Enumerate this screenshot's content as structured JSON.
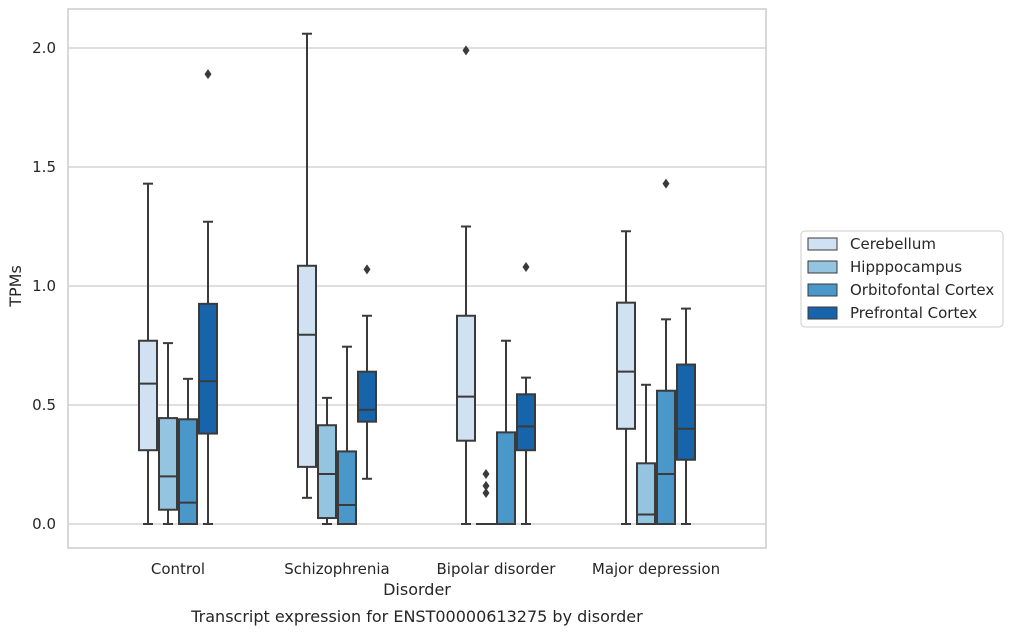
{
  "chart_data": {
    "type": "box",
    "xlabel": "Disorder",
    "ylabel": "TPMs",
    "caption": "Transcript expression for ENST00000613275 by disorder",
    "ylim": [
      -0.1,
      2.17
    ],
    "yticks": [
      0.0,
      0.5,
      1.0,
      1.5,
      2.0
    ],
    "ytick_labels": [
      "0.0",
      "0.5",
      "1.0",
      "1.5",
      "2.0"
    ],
    "grid": "horizontal",
    "legend_position": "right",
    "categories": [
      "Control",
      "Schizophrenia",
      "Bipolar disorder",
      "Major depression"
    ],
    "series": [
      {
        "name": "Cerebellum",
        "color": "#d0e1f2",
        "boxes": [
          {
            "min": 0.0,
            "q1": 0.31,
            "median": 0.59,
            "q3": 0.77,
            "max": 1.43,
            "outliers": []
          },
          {
            "min": 0.11,
            "q1": 0.24,
            "median": 0.795,
            "q3": 1.085,
            "max": 2.06,
            "outliers": []
          },
          {
            "min": 0.0,
            "q1": 0.35,
            "median": 0.535,
            "q3": 0.875,
            "max": 1.25,
            "outliers": [
              1.99
            ]
          },
          {
            "min": 0.0,
            "q1": 0.4,
            "median": 0.64,
            "q3": 0.93,
            "max": 1.23,
            "outliers": []
          }
        ]
      },
      {
        "name": "Hipppocampus",
        "color": "#94c4df",
        "boxes": [
          {
            "min": 0.0,
            "q1": 0.06,
            "median": 0.2,
            "q3": 0.445,
            "max": 0.76,
            "outliers": []
          },
          {
            "min": 0.0,
            "q1": 0.025,
            "median": 0.21,
            "q3": 0.415,
            "max": 0.53,
            "outliers": []
          },
          {
            "min": 0.0,
            "q1": 0.0,
            "median": 0.0,
            "q3": 0.0,
            "max": 0.0,
            "outliers": [
              0.13,
              0.16,
              0.21
            ]
          },
          {
            "min": 0.0,
            "q1": 0.0,
            "median": 0.04,
            "q3": 0.255,
            "max": 0.585,
            "outliers": []
          }
        ]
      },
      {
        "name": "Orbitofontal Cortex",
        "color": "#4a98c9",
        "boxes": [
          {
            "min": 0.0,
            "q1": 0.0,
            "median": 0.09,
            "q3": 0.44,
            "max": 0.61,
            "outliers": []
          },
          {
            "min": 0.0,
            "q1": 0.0,
            "median": 0.08,
            "q3": 0.305,
            "max": 0.745,
            "outliers": []
          },
          {
            "min": 0.0,
            "q1": 0.0,
            "median": 0.0,
            "q3": 0.385,
            "max": 0.77,
            "outliers": []
          },
          {
            "min": 0.0,
            "q1": 0.0,
            "median": 0.21,
            "q3": 0.56,
            "max": 0.86,
            "outliers": [
              1.43
            ]
          }
        ]
      },
      {
        "name": "Prefrontal Cortex",
        "color": "#1764ab",
        "boxes": [
          {
            "min": 0.0,
            "q1": 0.38,
            "median": 0.6,
            "q3": 0.925,
            "max": 1.27,
            "outliers": [
              1.89
            ]
          },
          {
            "min": 0.19,
            "q1": 0.43,
            "median": 0.48,
            "q3": 0.64,
            "max": 0.875,
            "outliers": [
              1.07
            ]
          },
          {
            "min": 0.0,
            "q1": 0.31,
            "median": 0.41,
            "q3": 0.545,
            "max": 0.615,
            "outliers": [
              1.08
            ]
          },
          {
            "min": 0.0,
            "q1": 0.27,
            "median": 0.4,
            "q3": 0.67,
            "max": 0.905,
            "outliers": []
          }
        ]
      }
    ]
  }
}
